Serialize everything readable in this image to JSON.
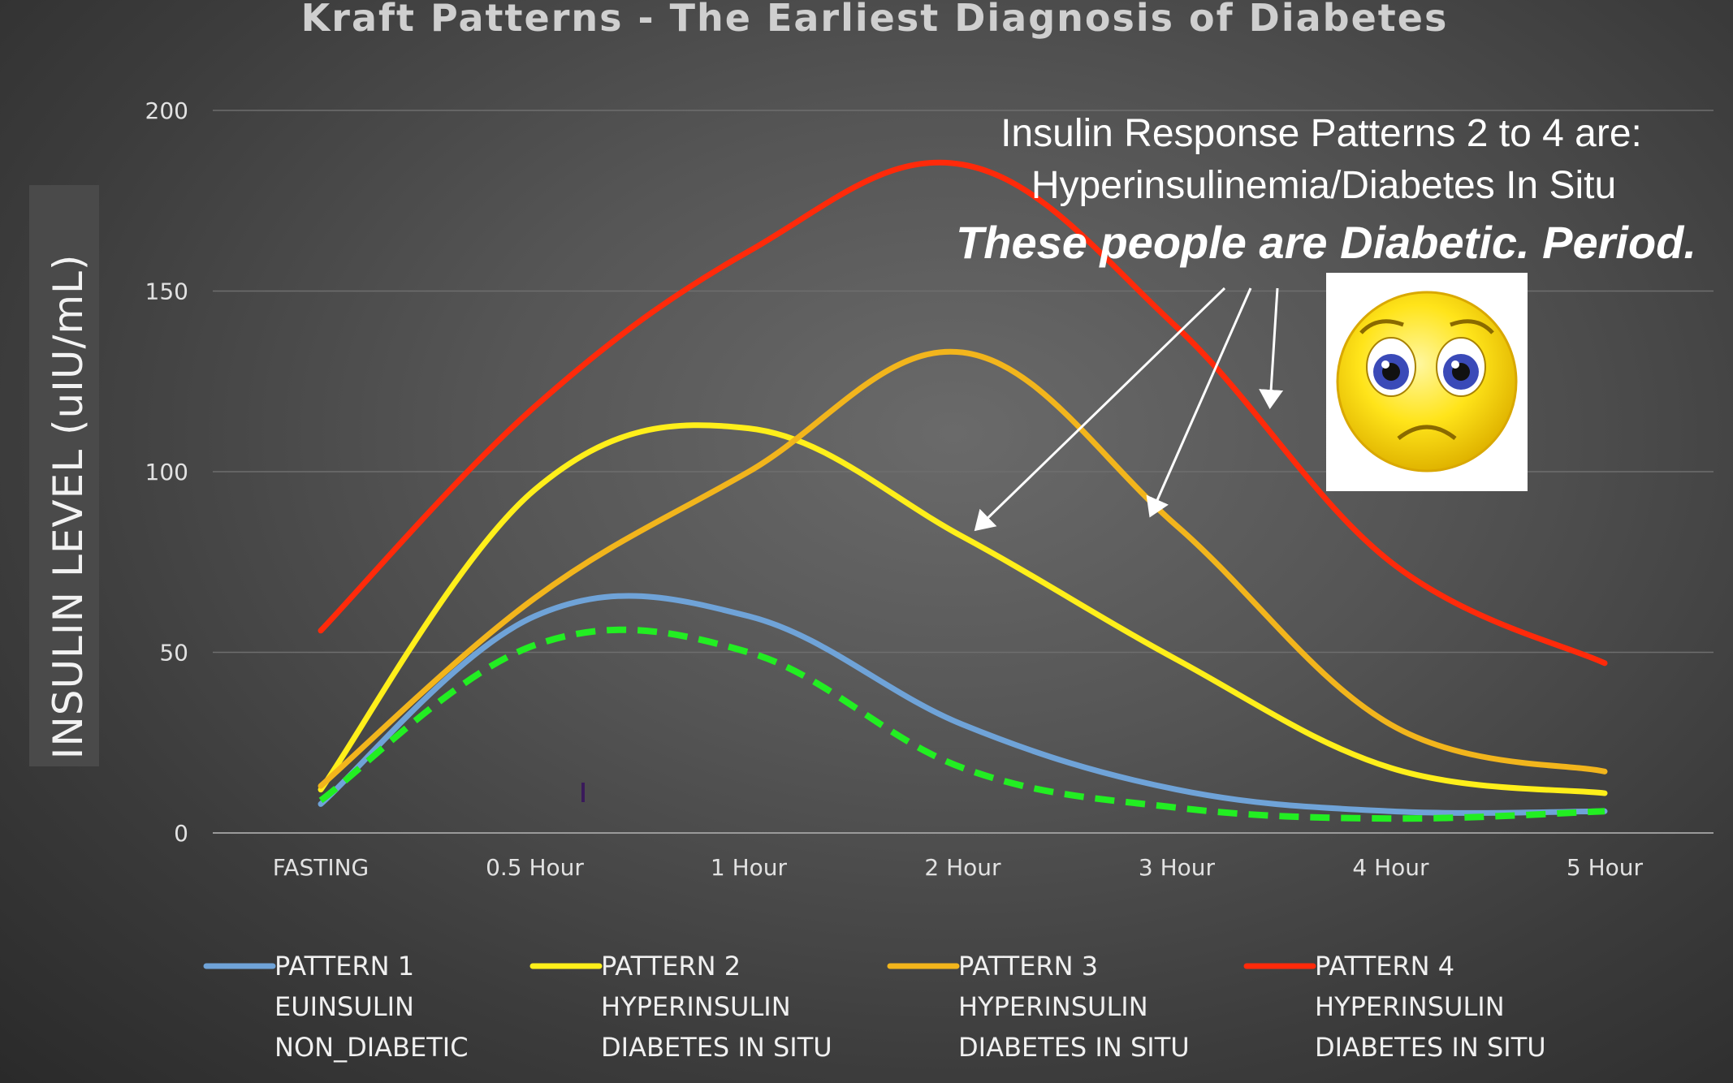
{
  "chart_data": {
    "type": "line",
    "title": "Kraft Patterns - The Earliest Diagnosis of Diabetes",
    "ylabel": "INSULIN LEVEL (uIU/mL)",
    "xlabel": "",
    "categories": [
      "FASTING",
      "0.5 Hour",
      "1 Hour",
      "2 Hour",
      "3 Hour",
      "4 Hour",
      "5 Hour"
    ],
    "y_ticks": [
      0,
      50,
      100,
      150,
      200
    ],
    "ylim": [
      0,
      200
    ],
    "grid": true,
    "legend_position": "bottom",
    "series": [
      {
        "name": "PATTERN 1",
        "sub1": "EUINSULIN",
        "sub2": "NON_DIABETIC",
        "color": "#6fa3d8",
        "values": [
          8,
          60,
          60,
          30,
          12,
          6,
          6
        ]
      },
      {
        "name": "PATTERN 2",
        "sub1": "HYPERINSULIN",
        "sub2": "DIABETES IN SITU",
        "color": "#ffef1a",
        "values": [
          12,
          95,
          112,
          82,
          48,
          18,
          11
        ]
      },
      {
        "name": "PATTERN 3",
        "sub1": "HYPERINSULIN",
        "sub2": "DIABETES IN SITU",
        "color": "#f2b51c",
        "values": [
          13,
          65,
          100,
          133,
          85,
          30,
          17
        ]
      },
      {
        "name": "PATTERN 4",
        "sub1": "HYPERINSULIN",
        "sub2": "DIABETES IN SITU",
        "color": "#ff2a0a",
        "values": [
          56,
          118,
          161,
          185,
          140,
          75,
          47
        ]
      }
    ],
    "overlay_dashed": {
      "color": "#22ee22",
      "values": [
        9,
        52,
        50,
        18,
        7,
        4,
        6
      ]
    },
    "annotation": {
      "line1": "Insulin Response Patterns 2 to 4 are:",
      "line2": "Hyperinsulinemia/Diabetes In Situ",
      "line3": "These people are Diabetic. Period."
    },
    "emoji_icon": "sad-face-icon"
  }
}
